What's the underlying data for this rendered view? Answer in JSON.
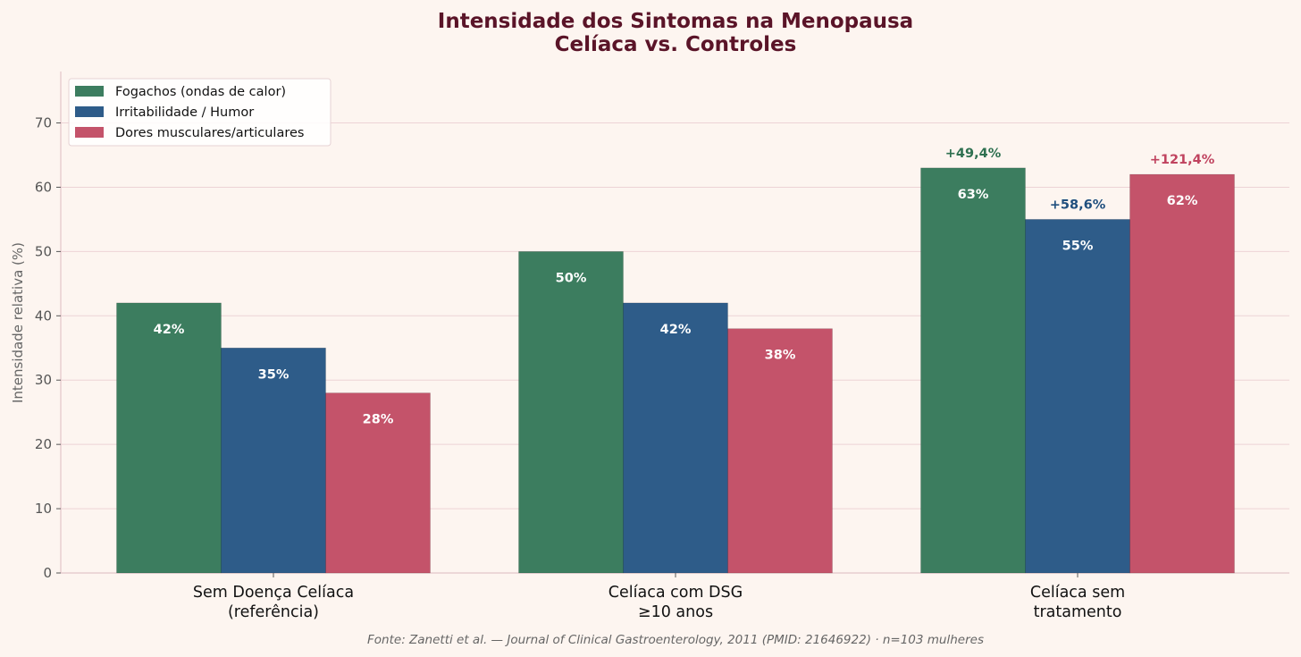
{
  "chart_data": {
    "type": "bar",
    "title_lines": [
      "Intensidade dos Sintomas na Menopausa",
      "Celíaca vs. Controles"
    ],
    "ylabel": "Intensidade relativa (%)",
    "xlabel": "",
    "ylim": [
      0,
      78
    ],
    "yticks": [
      "0",
      "10",
      "20",
      "30",
      "40",
      "50",
      "60",
      "70"
    ],
    "grid": "horizontal",
    "legend_position": "top-left",
    "categories": [
      [
        "Sem Doença Celíaca",
        "(referência)"
      ],
      [
        "Celíaca com DSG",
        "≥10 anos"
      ],
      [
        "Celíaca sem",
        "tratamento"
      ]
    ],
    "series": [
      {
        "name": "Fogachos (ondas de calor)",
        "color": "#3c7d5f",
        "values": [
          42,
          50,
          63
        ],
        "labels": [
          "42%",
          "50%",
          "63%"
        ],
        "annotations": [
          "",
          "",
          "+49,4%"
        ]
      },
      {
        "name": "Irritabilidade / Humor",
        "color": "#2e5c89",
        "values": [
          35,
          42,
          55
        ],
        "labels": [
          "35%",
          "42%",
          "55%"
        ],
        "annotations": [
          "",
          "",
          "+58,6%"
        ]
      },
      {
        "name": "Dores musculares/articulares",
        "color": "#c4536a",
        "values": [
          28,
          38,
          62
        ],
        "labels": [
          "28%",
          "38%",
          "62%"
        ],
        "annotations": [
          "",
          "",
          "+121,4%"
        ]
      }
    ],
    "annotation_colors": [
      "#2e7050",
      "#1f4f7e",
      "#c0435f"
    ],
    "source": "Fonte: Zanetti et al. — Journal of Clinical Gastroenterology, 2011 (PMID: 21646922) · n=103 mulheres"
  }
}
